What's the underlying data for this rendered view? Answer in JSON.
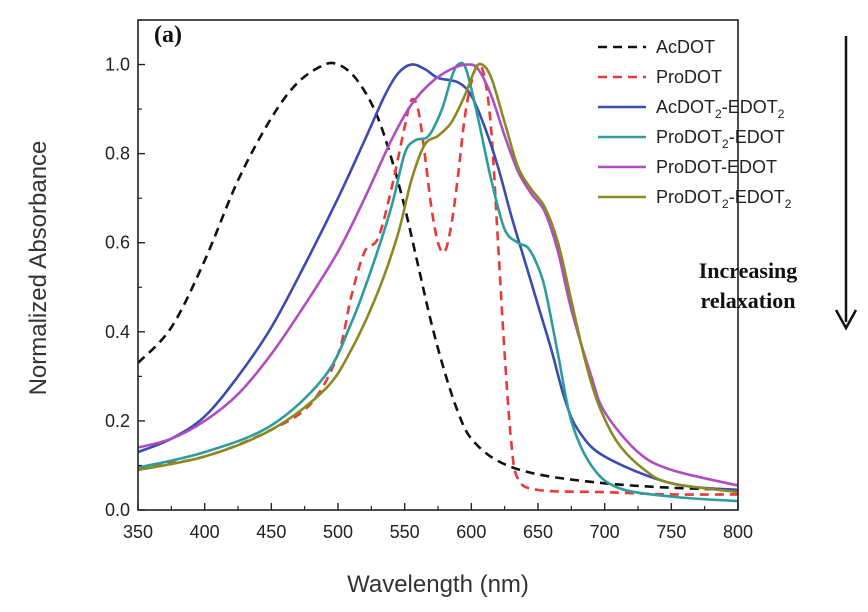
{
  "chart_data": {
    "type": "line",
    "panel_label": "(a)",
    "xlabel": "Wavelength (nm)",
    "ylabel": "Normalized Absorbance",
    "xlim": [
      350,
      800
    ],
    "ylim": [
      0.0,
      1.1
    ],
    "x_ticks": [
      "350",
      "400",
      "450",
      "500",
      "550",
      "600",
      "650",
      "700",
      "750",
      "800"
    ],
    "y_ticks": [
      "0.0",
      "0.2",
      "0.4",
      "0.6",
      "0.8",
      "1.0"
    ],
    "grid": false,
    "legend_position": "top-right",
    "annotation": {
      "line1": "Increasing",
      "line2": "relaxation",
      "arrow": "down"
    },
    "series": [
      {
        "name": "AcDOT",
        "name_parts": [
          {
            "t": "AcDOT",
            "sub": false
          }
        ],
        "color": "#111111",
        "dashed": true,
        "points": [
          [
            350,
            0.33
          ],
          [
            375,
            0.41
          ],
          [
            400,
            0.56
          ],
          [
            425,
            0.74
          ],
          [
            450,
            0.88
          ],
          [
            470,
            0.96
          ],
          [
            490,
            1.0
          ],
          [
            500,
            1.0
          ],
          [
            510,
            0.98
          ],
          [
            520,
            0.94
          ],
          [
            530,
            0.88
          ],
          [
            540,
            0.79
          ],
          [
            550,
            0.68
          ],
          [
            560,
            0.55
          ],
          [
            570,
            0.42
          ],
          [
            580,
            0.31
          ],
          [
            590,
            0.22
          ],
          [
            600,
            0.16
          ],
          [
            620,
            0.11
          ],
          [
            650,
            0.08
          ],
          [
            700,
            0.06
          ],
          [
            750,
            0.05
          ],
          [
            800,
            0.045
          ]
        ]
      },
      {
        "name": "ProDOT",
        "name_parts": [
          {
            "t": "ProDOT",
            "sub": false
          }
        ],
        "color": "#e83a3a",
        "dashed": true,
        "points": [
          [
            350,
            0.095
          ],
          [
            400,
            0.12
          ],
          [
            450,
            0.18
          ],
          [
            480,
            0.24
          ],
          [
            500,
            0.35
          ],
          [
            510,
            0.48
          ],
          [
            520,
            0.58
          ],
          [
            530,
            0.61
          ],
          [
            540,
            0.72
          ],
          [
            550,
            0.86
          ],
          [
            555,
            0.92
          ],
          [
            560,
            0.9
          ],
          [
            565,
            0.8
          ],
          [
            570,
            0.68
          ],
          [
            575,
            0.6
          ],
          [
            580,
            0.58
          ],
          [
            585,
            0.64
          ],
          [
            590,
            0.75
          ],
          [
            595,
            0.88
          ],
          [
            600,
            0.96
          ],
          [
            605,
            1.0
          ],
          [
            610,
            0.97
          ],
          [
            615,
            0.85
          ],
          [
            620,
            0.6
          ],
          [
            625,
            0.35
          ],
          [
            630,
            0.15
          ],
          [
            635,
            0.07
          ],
          [
            650,
            0.045
          ],
          [
            700,
            0.04
          ],
          [
            750,
            0.035
          ],
          [
            800,
            0.035
          ]
        ]
      },
      {
        "name": "AcDOT2-EDOT2",
        "name_parts": [
          {
            "t": "AcDOT",
            "sub": false
          },
          {
            "t": "2",
            "sub": true
          },
          {
            "t": "-EDOT",
            "sub": false
          },
          {
            "t": "2",
            "sub": true
          }
        ],
        "color": "#3b4bb0",
        "dashed": false,
        "points": [
          [
            350,
            0.13
          ],
          [
            375,
            0.16
          ],
          [
            400,
            0.21
          ],
          [
            425,
            0.3
          ],
          [
            450,
            0.41
          ],
          [
            475,
            0.55
          ],
          [
            500,
            0.7
          ],
          [
            520,
            0.83
          ],
          [
            535,
            0.93
          ],
          [
            545,
            0.98
          ],
          [
            555,
            1.0
          ],
          [
            565,
            0.99
          ],
          [
            575,
            0.97
          ],
          [
            590,
            0.96
          ],
          [
            600,
            0.93
          ],
          [
            610,
            0.86
          ],
          [
            620,
            0.77
          ],
          [
            630,
            0.66
          ],
          [
            640,
            0.56
          ],
          [
            650,
            0.46
          ],
          [
            660,
            0.36
          ],
          [
            670,
            0.25
          ],
          [
            680,
            0.18
          ],
          [
            700,
            0.12
          ],
          [
            750,
            0.06
          ],
          [
            800,
            0.045
          ]
        ]
      },
      {
        "name": "ProDOT2-EDOT",
        "name_parts": [
          {
            "t": "ProDOT",
            "sub": false
          },
          {
            "t": "2",
            "sub": true
          },
          {
            "t": "-EDOT",
            "sub": false
          }
        ],
        "color": "#2e9c9c",
        "dashed": false,
        "points": [
          [
            350,
            0.095
          ],
          [
            400,
            0.13
          ],
          [
            450,
            0.19
          ],
          [
            490,
            0.3
          ],
          [
            510,
            0.42
          ],
          [
            525,
            0.54
          ],
          [
            540,
            0.68
          ],
          [
            550,
            0.8
          ],
          [
            558,
            0.83
          ],
          [
            568,
            0.84
          ],
          [
            578,
            0.9
          ],
          [
            585,
            0.97
          ],
          [
            590,
            1.0
          ],
          [
            596,
            0.99
          ],
          [
            605,
            0.88
          ],
          [
            615,
            0.74
          ],
          [
            625,
            0.63
          ],
          [
            635,
            0.6
          ],
          [
            642,
            0.59
          ],
          [
            648,
            0.56
          ],
          [
            655,
            0.5
          ],
          [
            665,
            0.35
          ],
          [
            675,
            0.2
          ],
          [
            690,
            0.1
          ],
          [
            710,
            0.05
          ],
          [
            750,
            0.03
          ],
          [
            800,
            0.02
          ]
        ]
      },
      {
        "name": "ProDOT-EDOT",
        "name_parts": [
          {
            "t": "ProDOT-EDOT",
            "sub": false
          }
        ],
        "color": "#b04ec0",
        "dashed": false,
        "points": [
          [
            350,
            0.14
          ],
          [
            375,
            0.16
          ],
          [
            400,
            0.2
          ],
          [
            425,
            0.26
          ],
          [
            450,
            0.35
          ],
          [
            475,
            0.46
          ],
          [
            500,
            0.58
          ],
          [
            520,
            0.7
          ],
          [
            540,
            0.83
          ],
          [
            555,
            0.91
          ],
          [
            570,
            0.96
          ],
          [
            585,
            0.99
          ],
          [
            597,
            1.0
          ],
          [
            605,
            0.99
          ],
          [
            615,
            0.93
          ],
          [
            625,
            0.84
          ],
          [
            635,
            0.76
          ],
          [
            645,
            0.71
          ],
          [
            655,
            0.67
          ],
          [
            665,
            0.58
          ],
          [
            675,
            0.45
          ],
          [
            690,
            0.3
          ],
          [
            700,
            0.22
          ],
          [
            725,
            0.13
          ],
          [
            750,
            0.09
          ],
          [
            800,
            0.055
          ]
        ]
      },
      {
        "name": "ProDOT2-EDOT2",
        "name_parts": [
          {
            "t": "ProDOT",
            "sub": false
          },
          {
            "t": "2",
            "sub": true
          },
          {
            "t": "-EDOT",
            "sub": false
          },
          {
            "t": "2",
            "sub": true
          }
        ],
        "color": "#8a8a22",
        "dashed": false,
        "points": [
          [
            350,
            0.09
          ],
          [
            400,
            0.12
          ],
          [
            450,
            0.18
          ],
          [
            490,
            0.27
          ],
          [
            510,
            0.36
          ],
          [
            530,
            0.49
          ],
          [
            545,
            0.62
          ],
          [
            555,
            0.74
          ],
          [
            565,
            0.82
          ],
          [
            575,
            0.84
          ],
          [
            585,
            0.87
          ],
          [
            595,
            0.93
          ],
          [
            603,
            0.99
          ],
          [
            608,
            1.0
          ],
          [
            615,
            0.97
          ],
          [
            625,
            0.87
          ],
          [
            635,
            0.77
          ],
          [
            645,
            0.72
          ],
          [
            655,
            0.68
          ],
          [
            665,
            0.6
          ],
          [
            675,
            0.47
          ],
          [
            685,
            0.34
          ],
          [
            695,
            0.24
          ],
          [
            710,
            0.15
          ],
          [
            730,
            0.09
          ],
          [
            750,
            0.06
          ],
          [
            800,
            0.04
          ]
        ]
      }
    ]
  }
}
